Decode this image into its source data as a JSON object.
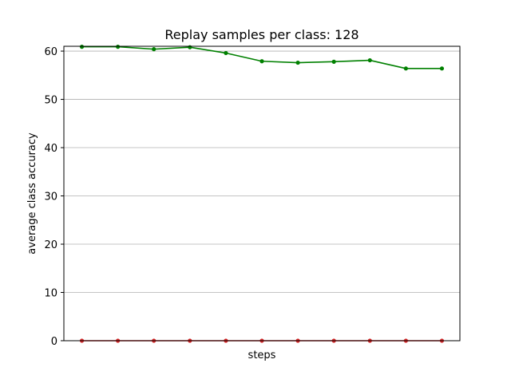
{
  "chart_data": {
    "type": "line",
    "title": "Replay samples per class: 128",
    "xlabel": "steps",
    "ylabel": "average class accuracy",
    "x": [
      1,
      2,
      3,
      4,
      5,
      6,
      7,
      8,
      9,
      10,
      11
    ],
    "xlim": [
      0.5,
      11.5
    ],
    "ylim": [
      0,
      61
    ],
    "yticks": [
      0,
      10,
      20,
      30,
      40,
      50,
      60
    ],
    "xticks_visible": false,
    "grid": "y",
    "series": [
      {
        "color": "#008000",
        "marker": "circle",
        "values": [
          60.9,
          60.9,
          60.4,
          60.8,
          59.6,
          57.9,
          57.6,
          57.8,
          58.1,
          56.4,
          56.4
        ]
      },
      {
        "color": "#d62728",
        "marker": "circle",
        "values": [
          0,
          0,
          0,
          0,
          0,
          0,
          0,
          0,
          0,
          0,
          0
        ]
      }
    ]
  }
}
